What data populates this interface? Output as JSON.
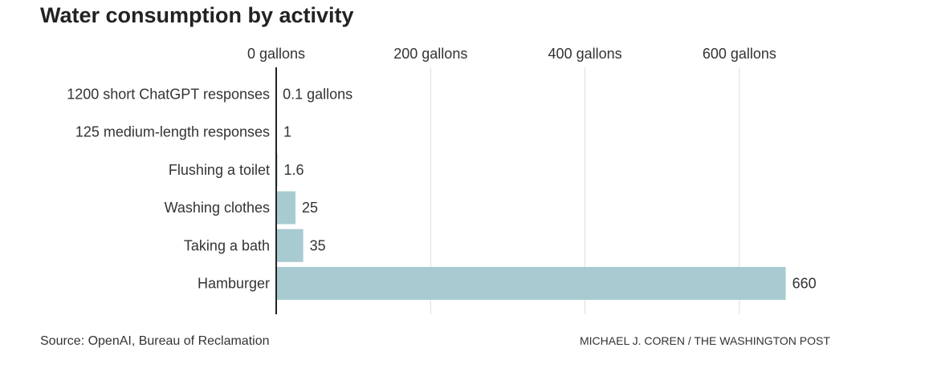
{
  "chart_data": {
    "type": "bar",
    "orientation": "horizontal",
    "title": "Water consumption by activity",
    "categories": [
      "1200 short ChatGPT responses",
      "125 medium-length responses",
      "Flushing a toilet",
      "Washing clothes",
      "Taking a bath",
      "Hamburger"
    ],
    "values": [
      0.1,
      1,
      1.6,
      25,
      35,
      660
    ],
    "value_labels": [
      "0.1 gallons",
      "1",
      "1.6",
      "25",
      "35",
      "660"
    ],
    "xticks": [
      0,
      200,
      400,
      600
    ],
    "xtick_labels": [
      "0 gallons",
      "200 gallons",
      "400 gallons",
      "600 gallons"
    ],
    "xlim": [
      0,
      660
    ],
    "grid": true,
    "bar_color": "#a8cbd1",
    "grid_color": "#dddddd",
    "axis_color": "#222222"
  },
  "footer": {
    "source": "Source: OpenAI, Bureau of Reclamation",
    "credit": "MICHAEL J. COREN / THE WASHINGTON POST"
  }
}
